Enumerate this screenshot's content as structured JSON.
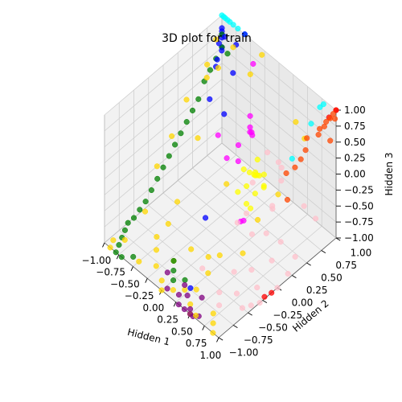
{
  "chart_data": {
    "type": "scatter",
    "dimensions": 3,
    "title": "3D plot for train",
    "xlabel": "Hidden 1",
    "ylabel": "Hidden 2",
    "zlabel": "Hidden 3",
    "xlim": [
      -1.0,
      1.0
    ],
    "ylim": [
      -1.0,
      1.0
    ],
    "zlim": [
      -1.0,
      1.0
    ],
    "x_ticks": [
      "−1.00",
      "−0.75",
      "−0.50",
      "−0.25",
      "0.00",
      "0.25",
      "0.50",
      "0.75",
      "1.00"
    ],
    "y_ticks": [
      "−1.00",
      "−0.75",
      "−0.50",
      "−0.25",
      "0.00",
      "0.25",
      "0.50",
      "0.75",
      "1.00"
    ],
    "z_ticks": [
      "−1.00",
      "−0.75",
      "−0.50",
      "−0.25",
      "0.00",
      "0.25",
      "0.50",
      "0.75",
      "1.00"
    ],
    "grid": true,
    "legend": "none",
    "series": [
      {
        "color": "#00ffff",
        "points": [
          [
            -1,
            1,
            1
          ],
          [
            -0.97,
            1,
            1
          ],
          [
            -0.94,
            1,
            1
          ],
          [
            -0.9,
            1,
            1
          ],
          [
            -0.86,
            1,
            1
          ],
          [
            -0.8,
            1,
            1
          ],
          [
            -0.72,
            1,
            1
          ],
          [
            -0.6,
            1,
            1
          ],
          [
            0.8,
            0.98,
            0.96
          ],
          [
            0.8,
            0.92,
            0.96
          ],
          [
            0.82,
            0.75,
            0.85
          ],
          [
            0.95,
            0.3,
            0.75
          ]
        ]
      },
      {
        "color": "#ff4500",
        "points": [
          [
            1,
            1,
            1
          ],
          [
            1,
            0.95,
            0.98
          ],
          [
            1,
            0.9,
            0.95
          ],
          [
            0.98,
            0.85,
            0.92
          ],
          [
            1,
            0.8,
            0.9
          ],
          [
            0.97,
            0.75,
            0.88
          ],
          [
            1,
            0.7,
            0.85
          ],
          [
            0.9,
            0.6,
            0.8
          ],
          [
            0.98,
            0.5,
            0.75
          ],
          [
            1,
            0.4,
            0.7
          ],
          [
            1,
            0.3,
            0.65
          ],
          [
            0.95,
            0.2,
            0.6
          ],
          [
            0.98,
            1,
            0.85
          ],
          [
            1,
            0.9,
            0.6
          ],
          [
            0.97,
            0.2,
            0.2
          ]
        ]
      },
      {
        "color": "#ff0000",
        "points": [
          [
            1,
            1,
            1
          ],
          [
            0.98,
            0.9,
            0.95
          ],
          [
            1,
            -0.1,
            -1
          ],
          [
            0.98,
            -0.2,
            -1
          ]
        ]
      },
      {
        "color": "#ffc0cb",
        "points": [
          [
            1,
            -0.3,
            -1
          ],
          [
            0.95,
            -0.4,
            -1
          ],
          [
            0.9,
            -0.5,
            -1
          ],
          [
            1,
            0,
            -1
          ],
          [
            0.98,
            0.2,
            -0.95
          ],
          [
            0.9,
            0.4,
            -0.9
          ],
          [
            0.85,
            -0.2,
            -0.95
          ],
          [
            0.8,
            0.1,
            -0.8
          ],
          [
            0.75,
            0.3,
            -0.7
          ],
          [
            0.7,
            -0.4,
            -1
          ],
          [
            0.65,
            -0.1,
            -0.9
          ],
          [
            0.6,
            0.2,
            -0.6
          ],
          [
            0.5,
            0.4,
            -0.4
          ],
          [
            0.55,
            -0.3,
            -0.85
          ],
          [
            0.45,
            0.6,
            -0.2
          ],
          [
            0.4,
            0.5,
            -0.6
          ],
          [
            0.35,
            0.2,
            -0.8
          ],
          [
            0.3,
            0.7,
            -0.1
          ],
          [
            0.3,
            0,
            -0.5
          ],
          [
            0.25,
            0.8,
            -0.3
          ],
          [
            0.6,
            -0.6,
            -0.9
          ],
          [
            0.7,
            -0.7,
            -0.95
          ],
          [
            0.2,
            -0.5,
            -0.9
          ],
          [
            0.15,
            0.3,
            -0.7
          ],
          [
            -0.1,
            0.9,
            -0.4
          ],
          [
            -0.05,
            0.6,
            -0.6
          ],
          [
            0.85,
            0.6,
            -0.3
          ],
          [
            0.95,
            0.7,
            -0.5
          ]
        ]
      },
      {
        "color": "#ffff00",
        "points": [
          [
            0,
            0.4,
            -0.2
          ],
          [
            0.05,
            0.45,
            -0.25
          ],
          [
            0.1,
            0.5,
            -0.3
          ],
          [
            0.08,
            0.55,
            -0.35
          ],
          [
            0.12,
            0.48,
            -0.22
          ],
          [
            0.15,
            0.52,
            -0.28
          ],
          [
            0.2,
            0.55,
            -0.25
          ],
          [
            0.25,
            0.5,
            -0.35
          ],
          [
            0.3,
            0.45,
            -0.3
          ],
          [
            0.18,
            0.4,
            -0.15
          ],
          [
            0.22,
            0.38,
            -0.4
          ],
          [
            0.1,
            0.35,
            -0.35
          ],
          [
            0.15,
            0.3,
            -0.55
          ],
          [
            0.2,
            0.32,
            -0.6
          ],
          [
            0.05,
            0.25,
            -0.4
          ],
          [
            0.22,
            0.42,
            0.1
          ]
        ]
      },
      {
        "color": "#ffd700",
        "points": [
          [
            -1,
            0.9,
            0.7
          ],
          [
            -0.95,
            0.7,
            0.5
          ],
          [
            -0.9,
            0.3,
            0.3
          ],
          [
            -0.85,
            0,
            0
          ],
          [
            -0.8,
            -0.3,
            -0.2
          ],
          [
            -0.7,
            -0.6,
            -0.6
          ],
          [
            -0.75,
            0.5,
            0.6
          ],
          [
            -0.6,
            0.2,
            0
          ],
          [
            -0.5,
            -0.4,
            -0.8
          ],
          [
            -0.4,
            -0.7,
            -0.9
          ],
          [
            -0.3,
            -0.8,
            -1
          ],
          [
            -0.2,
            -0.6,
            -1
          ],
          [
            -0.1,
            -0.9,
            -1
          ],
          [
            0,
            -1,
            -1
          ],
          [
            0.1,
            -0.9,
            -1
          ],
          [
            0.2,
            -0.8,
            -1
          ],
          [
            0.3,
            -0.7,
            -1
          ],
          [
            0.4,
            -0.9,
            -1
          ],
          [
            0.5,
            -1,
            -1
          ],
          [
            0.6,
            -1,
            -0.95
          ],
          [
            0.7,
            -0.8,
            -1
          ],
          [
            0.8,
            -0.9,
            -1
          ],
          [
            0.9,
            -1,
            -1
          ],
          [
            -0.95,
            -0.9,
            -1
          ],
          [
            -0.9,
            -1,
            -1
          ],
          [
            -0.85,
            -0.8,
            -1
          ],
          [
            -0.6,
            -0.5,
            -1
          ],
          [
            -0.55,
            0.5,
            0.9
          ],
          [
            -0.7,
            0.9,
            0.8
          ],
          [
            -0.3,
            1,
            0.9
          ],
          [
            -0.4,
            0.9,
            0.6
          ],
          [
            0.5,
            0.8,
            0.6
          ],
          [
            0.5,
            0.5,
            -0.3
          ],
          [
            0.55,
            0.9,
            0.3
          ],
          [
            0.6,
            -0.2,
            -0.6
          ],
          [
            -0.2,
            0.3,
            -0.5
          ],
          [
            -0.65,
            -0.1,
            -0.8
          ],
          [
            0.35,
            -0.35,
            -0.7
          ],
          [
            0.1,
            -0.3,
            -0.95
          ],
          [
            -0.1,
            -0.4,
            -0.9
          ],
          [
            0.45,
            0.2,
            -0.5
          ],
          [
            0.3,
            -0.5,
            -0.9
          ],
          [
            -0.5,
            -0.9,
            -1
          ]
        ]
      },
      {
        "color": "#ff00ff",
        "points": [
          [
            -0.3,
            0.8,
            0.1
          ],
          [
            -0.25,
            0.75,
            0
          ],
          [
            -0.2,
            0.7,
            0
          ],
          [
            -0.18,
            0.72,
            -0.05
          ],
          [
            -0.15,
            0.68,
            0.05
          ],
          [
            -0.3,
            0.6,
            -0.2
          ],
          [
            -0.35,
            0.9,
            0.8
          ],
          [
            -0.4,
            0.5,
            -0.4
          ],
          [
            -0.2,
            0.5,
            -0.3
          ],
          [
            0.1,
            0.3,
            -0.85
          ],
          [
            0.15,
            0.2,
            -0.75
          ],
          [
            -0.45,
            0.4,
            0
          ]
        ]
      },
      {
        "color": "#0000ff",
        "points": [
          [
            -1,
            1,
            0.8
          ],
          [
            -1,
            1,
            0.75
          ],
          [
            -1,
            1,
            0.7
          ],
          [
            -1,
            1,
            0.65
          ],
          [
            -0.95,
            1,
            0.7
          ],
          [
            -1,
            0.95,
            0.6
          ],
          [
            -1,
            1,
            0.5
          ],
          [
            -0.98,
            0.9,
            0.4
          ],
          [
            -0.9,
            0.9,
            0.6
          ],
          [
            -0.95,
            0.85,
            0.35
          ],
          [
            -0.6,
            1,
            1
          ],
          [
            -0.7,
            0.95,
            0.8
          ],
          [
            -0.6,
            0.8,
            0.55
          ],
          [
            -0.7,
            0.5,
            0.3
          ],
          [
            -0.55,
            0.6,
            0.1
          ],
          [
            0.1,
            -0.35,
            -0.3
          ],
          [
            0.3,
            -0.8,
            -0.9
          ]
        ]
      },
      {
        "color": "#008000",
        "points": [
          [
            -1,
            1,
            0.7
          ],
          [
            -1,
            1,
            0.5
          ],
          [
            -1,
            0.9,
            0.4
          ],
          [
            -1,
            0.8,
            0.3
          ],
          [
            -1,
            0.7,
            0.2
          ],
          [
            -1,
            0.6,
            0
          ],
          [
            -1,
            0.5,
            -0.1
          ],
          [
            -1,
            0.4,
            -0.2
          ],
          [
            -1,
            0.3,
            -0.3
          ],
          [
            -1,
            0.2,
            -0.4
          ],
          [
            -1,
            0.1,
            -0.5
          ],
          [
            -1,
            0,
            -0.6
          ],
          [
            -1,
            -0.1,
            -0.7
          ],
          [
            -1,
            -0.2,
            -0.8
          ],
          [
            -1,
            -0.3,
            -0.9
          ],
          [
            -1,
            -0.4,
            -0.95
          ],
          [
            -1,
            -0.5,
            -1
          ],
          [
            -1,
            -0.6,
            -1
          ],
          [
            -0.95,
            -0.7,
            -1
          ],
          [
            -0.9,
            -0.8,
            -1
          ],
          [
            -0.85,
            -0.9,
            -1
          ],
          [
            -0.8,
            -1,
            -1
          ],
          [
            -0.7,
            -1,
            -1
          ],
          [
            -0.6,
            -0.9,
            -1
          ],
          [
            -0.85,
            0.95,
            0.55
          ],
          [
            -0.2,
            -0.6,
            -1
          ],
          [
            -0.1,
            -0.7,
            -1
          ],
          [
            0,
            -0.8,
            -1
          ],
          [
            0.1,
            -0.7,
            -1
          ]
        ]
      },
      {
        "color": "#800080",
        "points": [
          [
            0.2,
            -0.9,
            -1
          ],
          [
            0.3,
            -1,
            -1
          ],
          [
            0.4,
            -1,
            -1
          ],
          [
            0.5,
            -1,
            -1
          ],
          [
            0.55,
            -1,
            -1
          ],
          [
            0.6,
            -0.95,
            -1
          ],
          [
            0.45,
            -0.95,
            -1
          ],
          [
            0.35,
            -0.9,
            -0.9
          ],
          [
            0.1,
            -1,
            -0.9
          ],
          [
            0,
            -0.9,
            -0.8
          ],
          [
            0.25,
            -0.85,
            -0.85
          ],
          [
            0.5,
            -0.8,
            -0.9
          ]
        ]
      }
    ]
  }
}
